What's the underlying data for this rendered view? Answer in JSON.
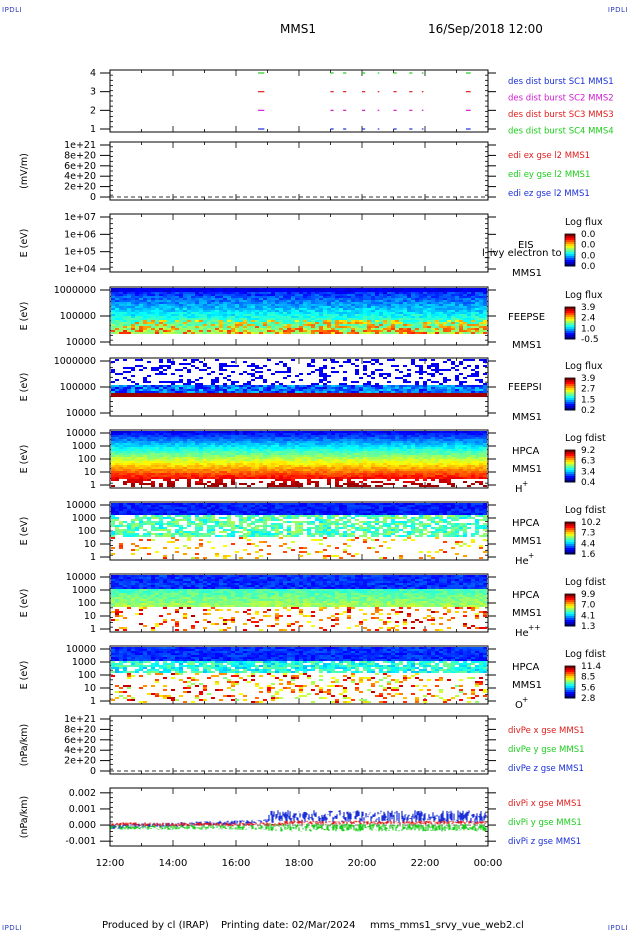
{
  "corners": {
    "tl": "IPDLI",
    "tr": "IPDLI",
    "bl": "IPDLI",
    "br": "IPDLI"
  },
  "header": {
    "spacecraft": "MMS1",
    "date": "16/Sep/2018 12:00"
  },
  "footer": {
    "produced": "Produced by cl (IRAP)",
    "printing": "Printing date: 02/Mar/2024",
    "script": "mms_mms1_srvy_vue_web2.cl"
  },
  "colors": {
    "mms1": "#1a2fd6",
    "mms2": "#d21bd2",
    "mms3": "#e01b1b",
    "mms4": "#1bcd1b",
    "dash": "#333333"
  },
  "chart_data": {
    "type": "multi-panel",
    "x_ticks": [
      "12:00",
      "14:00",
      "16:00",
      "18:00",
      "20:00",
      "22:00",
      "00:00"
    ],
    "panels": [
      {
        "id": "burst",
        "type": "line",
        "y_ticks": [
          "4",
          "3",
          "2",
          "1"
        ],
        "series": [
          {
            "name": "des dist burst SC1 MMS1",
            "color": "#1a2fd6"
          },
          {
            "name": "des dist burst SC2 MMS2",
            "color": "#d21bd2"
          },
          {
            "name": "des dist burst SC3 MMS3",
            "color": "#e01b1b"
          },
          {
            "name": "des dist burst SC4 MMS4",
            "color": "#1bcd1b"
          }
        ],
        "burst_intervals_hours": [
          [
            16.7,
            16.9
          ],
          [
            19.0,
            19.1
          ],
          [
            19.4,
            19.5
          ],
          [
            20.0,
            20.1
          ],
          [
            20.5,
            20.55
          ],
          [
            21.0,
            21.1
          ],
          [
            21.5,
            21.6
          ],
          [
            21.9,
            21.95
          ],
          [
            23.3,
            23.45
          ]
        ]
      },
      {
        "id": "edi",
        "type": "line",
        "ylabel": "(mV/m)",
        "y_ticks": [
          "1e+21",
          "8e+20",
          "6e+20",
          "4e+20",
          "2e+20",
          "0"
        ],
        "series": [
          {
            "name": "edi ex gse l2 MMS1",
            "color": "#e01b1b"
          },
          {
            "name": "edi ey gse l2 MMS1",
            "color": "#1bcd1b"
          },
          {
            "name": "edi ez gse l2 MMS1",
            "color": "#1a2fd6"
          }
        ]
      },
      {
        "id": "eis",
        "type": "heatmap",
        "ylabel": "E (eV)",
        "y_ticks": [
          "1e+07",
          "1e+06",
          "1e+05",
          "1e+04"
        ],
        "label": "EIS",
        "sublabel": "MMS1",
        "overlay": "l_ivy electron to",
        "cbar_title": "Log flux",
        "cbar_ticks": [
          "0.0",
          "0.0",
          "0.0",
          "0.0"
        ]
      },
      {
        "id": "feepse",
        "type": "heatmap",
        "ylabel": "E (eV)",
        "y_ticks": [
          "1000000",
          "100000",
          "10000"
        ],
        "label": "FEEPSE",
        "sublabel": "MMS1",
        "cbar_title": "Log flux",
        "cbar_ticks": [
          "3.9",
          "2.4",
          "1.0",
          "-0.5"
        ]
      },
      {
        "id": "feepsi",
        "type": "heatmap",
        "ylabel": "E (eV)",
        "y_ticks": [
          "1000000",
          "100000",
          "10000"
        ],
        "label": "FEEPSI",
        "sublabel": "MMS1",
        "cbar_title": "Log flux",
        "cbar_ticks": [
          "3.9",
          "2.7",
          "1.5",
          "0.2"
        ]
      },
      {
        "id": "hpca_h",
        "type": "heatmap",
        "ylabel": "E (eV)",
        "y_ticks": [
          "10000",
          "1000",
          "100",
          "10",
          "1"
        ],
        "label": "HPCA",
        "sublabel": "MMS1",
        "species": "H",
        "charge": "+",
        "cbar_title": "Log fdist",
        "cbar_ticks": [
          "9.2",
          "6.3",
          "3.4",
          "0.4"
        ]
      },
      {
        "id": "hpca_he",
        "type": "heatmap",
        "ylabel": "E (eV)",
        "y_ticks": [
          "10000",
          "1000",
          "100",
          "10",
          "1"
        ],
        "label": "HPCA",
        "sublabel": "MMS1",
        "species": "He",
        "charge": "+",
        "cbar_title": "Log fdist",
        "cbar_ticks": [
          "10.2",
          "7.3",
          "4.4",
          "1.6"
        ]
      },
      {
        "id": "hpca_hepp",
        "type": "heatmap",
        "ylabel": "E (eV)",
        "y_ticks": [
          "10000",
          "1000",
          "100",
          "10",
          "1"
        ],
        "label": "HPCA",
        "sublabel": "MMS1",
        "species": "He",
        "charge": "++",
        "cbar_title": "Log fdist",
        "cbar_ticks": [
          "9.9",
          "7.0",
          "4.1",
          "1.3"
        ]
      },
      {
        "id": "hpca_o",
        "type": "heatmap",
        "ylabel": "E (eV)",
        "y_ticks": [
          "10000",
          "1000",
          "100",
          "10",
          "1"
        ],
        "label": "HPCA",
        "sublabel": "MMS1",
        "species": "O",
        "charge": "+",
        "cbar_title": "Log fdist",
        "cbar_ticks": [
          "11.4",
          "8.5",
          "5.6",
          "2.8"
        ]
      },
      {
        "id": "divpe",
        "type": "line",
        "ylabel": "(nPa/km)",
        "y_ticks": [
          "1e+21",
          "8e+20",
          "6e+20",
          "4e+20",
          "2e+20",
          "0"
        ],
        "series": [
          {
            "name": "divPe x gse MMS1",
            "color": "#e01b1b"
          },
          {
            "name": "divPe y gse MMS1",
            "color": "#1bcd1b"
          },
          {
            "name": "divPe z gse MMS1",
            "color": "#1a2fd6"
          }
        ]
      },
      {
        "id": "divpi",
        "type": "line",
        "ylabel": "(nPa/km)",
        "y_ticks": [
          "0.002",
          "0.001",
          "0.000",
          "-0.001"
        ],
        "ylim": [
          -0.0013,
          0.0023
        ],
        "series": [
          {
            "name": "divPi x gse MMS1",
            "color": "#e01b1b"
          },
          {
            "name": "divPi y gse MMS1",
            "color": "#1bcd1b"
          },
          {
            "name": "divPi z gse MMS1",
            "color": "#1a2fd6"
          }
        ]
      }
    ]
  }
}
